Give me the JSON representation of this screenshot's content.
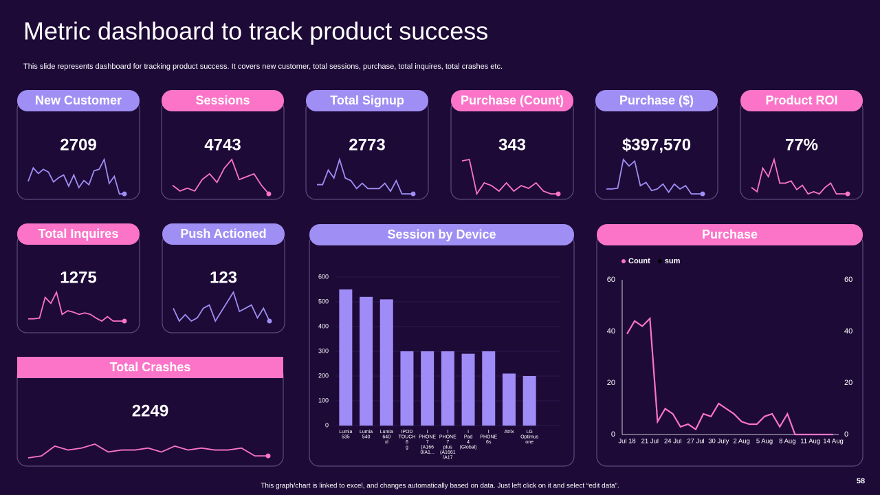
{
  "title": "Metric dashboard to track product success",
  "subtitle": "This slide represents dashboard for tracking product success. It covers new customer, total sessions, purchase, total inquires, total crashes etc.",
  "footer": "This graph/chart is linked to excel, and changes automatically based on data. Just left click on it and select “edit data”.",
  "page_number": 58,
  "kpis": [
    {
      "label": "New Customer",
      "value": 2709,
      "color": "#9f8ff4",
      "trend": [
        27,
        46,
        38,
        44,
        40,
        26,
        32,
        36,
        20,
        36,
        18,
        28,
        22,
        42,
        44,
        58,
        24,
        34,
        9,
        9
      ]
    },
    {
      "label": "Sessions",
      "value": 4743,
      "color": "#fb74c8",
      "trend": [
        26,
        22,
        24,
        22,
        30,
        34,
        28,
        38,
        44,
        30,
        32,
        34,
        26,
        20
      ]
    },
    {
      "label": "Total Signup",
      "value": 2773,
      "color": "#9f8ff4",
      "trend": [
        27,
        27,
        38,
        32,
        46,
        32,
        30,
        24,
        28,
        24,
        24,
        24,
        28,
        22,
        30,
        20,
        20,
        20
      ]
    },
    {
      "label": "Purchase (Count)",
      "value": 343,
      "color": "#fb74c8",
      "trend": [
        44,
        45,
        20,
        28,
        26,
        22,
        28,
        22,
        26,
        24,
        28,
        22,
        20,
        20
      ]
    },
    {
      "label": "Purchase ($)",
      "value": 397570,
      "value_label": "$397,570",
      "color": "#9f8ff4",
      "trend": [
        20,
        20,
        21,
        56,
        48,
        54,
        24,
        28,
        18,
        20,
        26,
        16,
        26,
        20,
        24,
        14,
        14,
        14
      ]
    },
    {
      "label": "Product ROI",
      "value": 77,
      "value_label": "77%",
      "color": "#fb74c8",
      "trend": [
        22,
        18,
        40,
        32,
        48,
        26,
        26,
        28,
        20,
        24,
        16,
        18,
        16,
        22,
        26,
        16,
        16,
        16
      ]
    },
    {
      "label": "Total Inquires",
      "value": 1275,
      "color": "#fb74c8",
      "trend": [
        39,
        39,
        40,
        68,
        60,
        75,
        45,
        50,
        48,
        45,
        47,
        45,
        40,
        36,
        42,
        36,
        36,
        36
      ]
    },
    {
      "label": "Push Actioned",
      "value": 123,
      "color": "#9f8ff4",
      "trend": [
        42,
        34,
        38,
        34,
        36,
        42,
        44,
        34,
        40,
        46,
        52,
        40,
        42,
        44,
        36,
        42,
        34
      ]
    },
    {
      "label": "Total Crashes",
      "value": 2249,
      "color": "#fb74c8",
      "trend": [
        36,
        38,
        48,
        44,
        46,
        50,
        42,
        44,
        44,
        46,
        42,
        48,
        44,
        46,
        44,
        44,
        46,
        38,
        38
      ]
    }
  ],
  "chart_data": [
    {
      "type": "bar",
      "title": "Session by Device",
      "header_color": "#9f8ff4",
      "categories": [
        "Lumia 535",
        "Lumia 540",
        "Lumia 640 xl",
        "IPOD TOUCH 6 g",
        "I PHONE 7 (A166 0/A1...",
        "I PHONE 7 plus (A1661 /A17",
        "I Pad 4 (Global)",
        "I PHONE 6s",
        "Atrix",
        "LG Optimus one"
      ],
      "values": [
        550,
        520,
        510,
        300,
        300,
        300,
        290,
        300,
        210,
        200
      ],
      "color": "#a08cf6",
      "ylim": [
        0,
        600
      ],
      "yticks": [
        0,
        100,
        200,
        300,
        400,
        500,
        600
      ],
      "grid": true
    },
    {
      "type": "line",
      "title": "Purchase",
      "header_color": "#fb74c8",
      "categories": [
        "Jul 18",
        null,
        null,
        "21 Jul",
        null,
        null,
        "24 Jul",
        null,
        null,
        "27 Jul",
        null,
        null,
        "30 July",
        null,
        null,
        "2 Aug",
        null,
        null,
        "5 Aug",
        null,
        null,
        "8 Aug",
        null,
        null,
        "11 Aug",
        null,
        null,
        "14 Aug"
      ],
      "series": [
        {
          "name": "Count",
          "color": "#fb74c8",
          "values": [
            39,
            44,
            42,
            45,
            5,
            10,
            8,
            3,
            4,
            2,
            8,
            7,
            12,
            10,
            8,
            5,
            4,
            4,
            7,
            8,
            3,
            8,
            0,
            0,
            0,
            0,
            0,
            0
          ]
        },
        {
          "name": "sum",
          "color": "#000000",
          "axis": "y2",
          "values": [
            null,
            null,
            null,
            null,
            null,
            null,
            null,
            null,
            null,
            null,
            null,
            null,
            null,
            null,
            null,
            null,
            null,
            null,
            null,
            null,
            null,
            null,
            null,
            null,
            null,
            null,
            null,
            null
          ]
        }
      ],
      "ylim": [
        0,
        60
      ],
      "yticks": [
        0,
        20,
        40,
        60
      ],
      "y2lim": [
        0,
        60
      ],
      "y2ticks": [
        0,
        20,
        40,
        60
      ],
      "legend": "top-left"
    }
  ]
}
